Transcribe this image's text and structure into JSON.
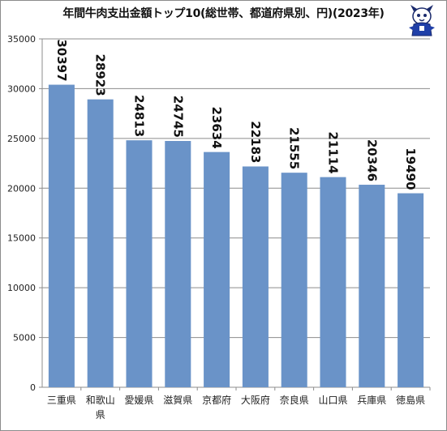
{
  "chart_data": {
    "type": "bar",
    "title": "年間牛肉支出金額トップ10(総世帯、都道府県別、円)(2023年)",
    "categories": [
      "三重県",
      "和歌山県",
      "愛媛県",
      "滋賀県",
      "京都府",
      "大阪府",
      "奈良県",
      "山口県",
      "兵庫県",
      "徳島県"
    ],
    "category_lines": [
      [
        "三重県"
      ],
      [
        "和歌山",
        "県"
      ],
      [
        "愛媛県"
      ],
      [
        "滋賀県"
      ],
      [
        "京都府"
      ],
      [
        "大阪府"
      ],
      [
        "奈良県"
      ],
      [
        "山口県"
      ],
      [
        "兵庫県"
      ],
      [
        "徳島県"
      ]
    ],
    "values": [
      30397,
      28923,
      24813,
      24745,
      23634,
      22183,
      21555,
      21114,
      20346,
      19490
    ],
    "data_labels": [
      "30397",
      "28923",
      "24813",
      "24745",
      "23634",
      "22183",
      "21555",
      "21114",
      "20346",
      "19490"
    ],
    "y_ticks": [
      "0",
      "5000",
      "10000",
      "15000",
      "20000",
      "25000",
      "30000",
      "35000"
    ],
    "ylim": [
      0,
      35000
    ],
    "grid": true,
    "legend": "none",
    "bar_color": "#6a93c8",
    "grid_color": "#8c8c8c"
  }
}
